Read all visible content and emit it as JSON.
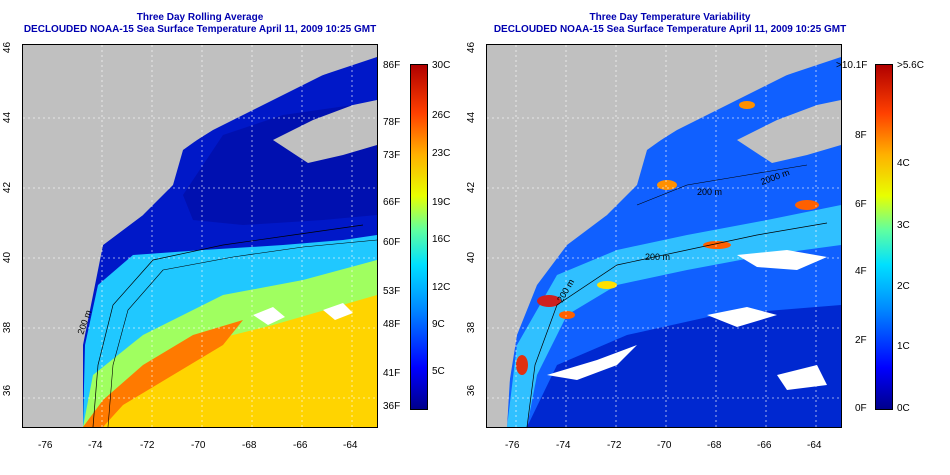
{
  "left_panel": {
    "title_line1": "Three Day Rolling Average",
    "title_line2": "DECLOUDED NOAA-15 Sea Surface Temperature April 11, 2009 10:25 GMT",
    "x_ticks": [
      "-76",
      "-74",
      "-72",
      "-70",
      "-68",
      "-66",
      "-64"
    ],
    "y_ticks": [
      "46",
      "44",
      "42",
      "40",
      "38",
      "36"
    ],
    "contour_label": "200 m",
    "colorbar": {
      "left_labels": [
        "86F",
        "78F",
        "73F",
        "66F",
        "60F",
        "53F",
        "48F",
        "41F",
        "36F"
      ],
      "right_labels": [
        "30C",
        "26C",
        "23C",
        "19C",
        "16C",
        "12C",
        "9C",
        "5C"
      ],
      "colors": [
        "#00008b",
        "#0000ff",
        "#0090ff",
        "#00e0ff",
        "#60ffa0",
        "#e8ff00",
        "#ffb000",
        "#ff4000",
        "#b00000"
      ]
    }
  },
  "right_panel": {
    "title_line1": "Three Day Temperature Variability",
    "title_line2": "DECLOUDED NOAA-15 Sea Surface Temperature April 11, 2009 10:25 GMT",
    "x_ticks": [
      "-76",
      "-74",
      "-72",
      "-70",
      "-68",
      "-66",
      "-64"
    ],
    "y_ticks": [
      "46",
      "44",
      "42",
      "40",
      "38",
      "36"
    ],
    "contour_labels": [
      "200 m",
      "200 m",
      "2000 m",
      "200 m"
    ],
    "colorbar": {
      "left_labels": [
        ">10.1F",
        "8F",
        "6F",
        "4F",
        "2F",
        "0F"
      ],
      "right_labels": [
        ">5.6C",
        "4C",
        "3C",
        "2C",
        "1C",
        "0C"
      ],
      "colors": [
        "#00008b",
        "#0000ff",
        "#0090ff",
        "#00e0ff",
        "#60ffa0",
        "#e8ff00",
        "#ffb000",
        "#ff4000",
        "#b00000"
      ]
    }
  },
  "colors": {
    "land": "#c0c0c0",
    "title": "#0000b0",
    "cold_water": "#0018c8",
    "mid_water": "#20d8ff",
    "warm_water": "#ffd400",
    "hot_water": "#ff7a00"
  }
}
